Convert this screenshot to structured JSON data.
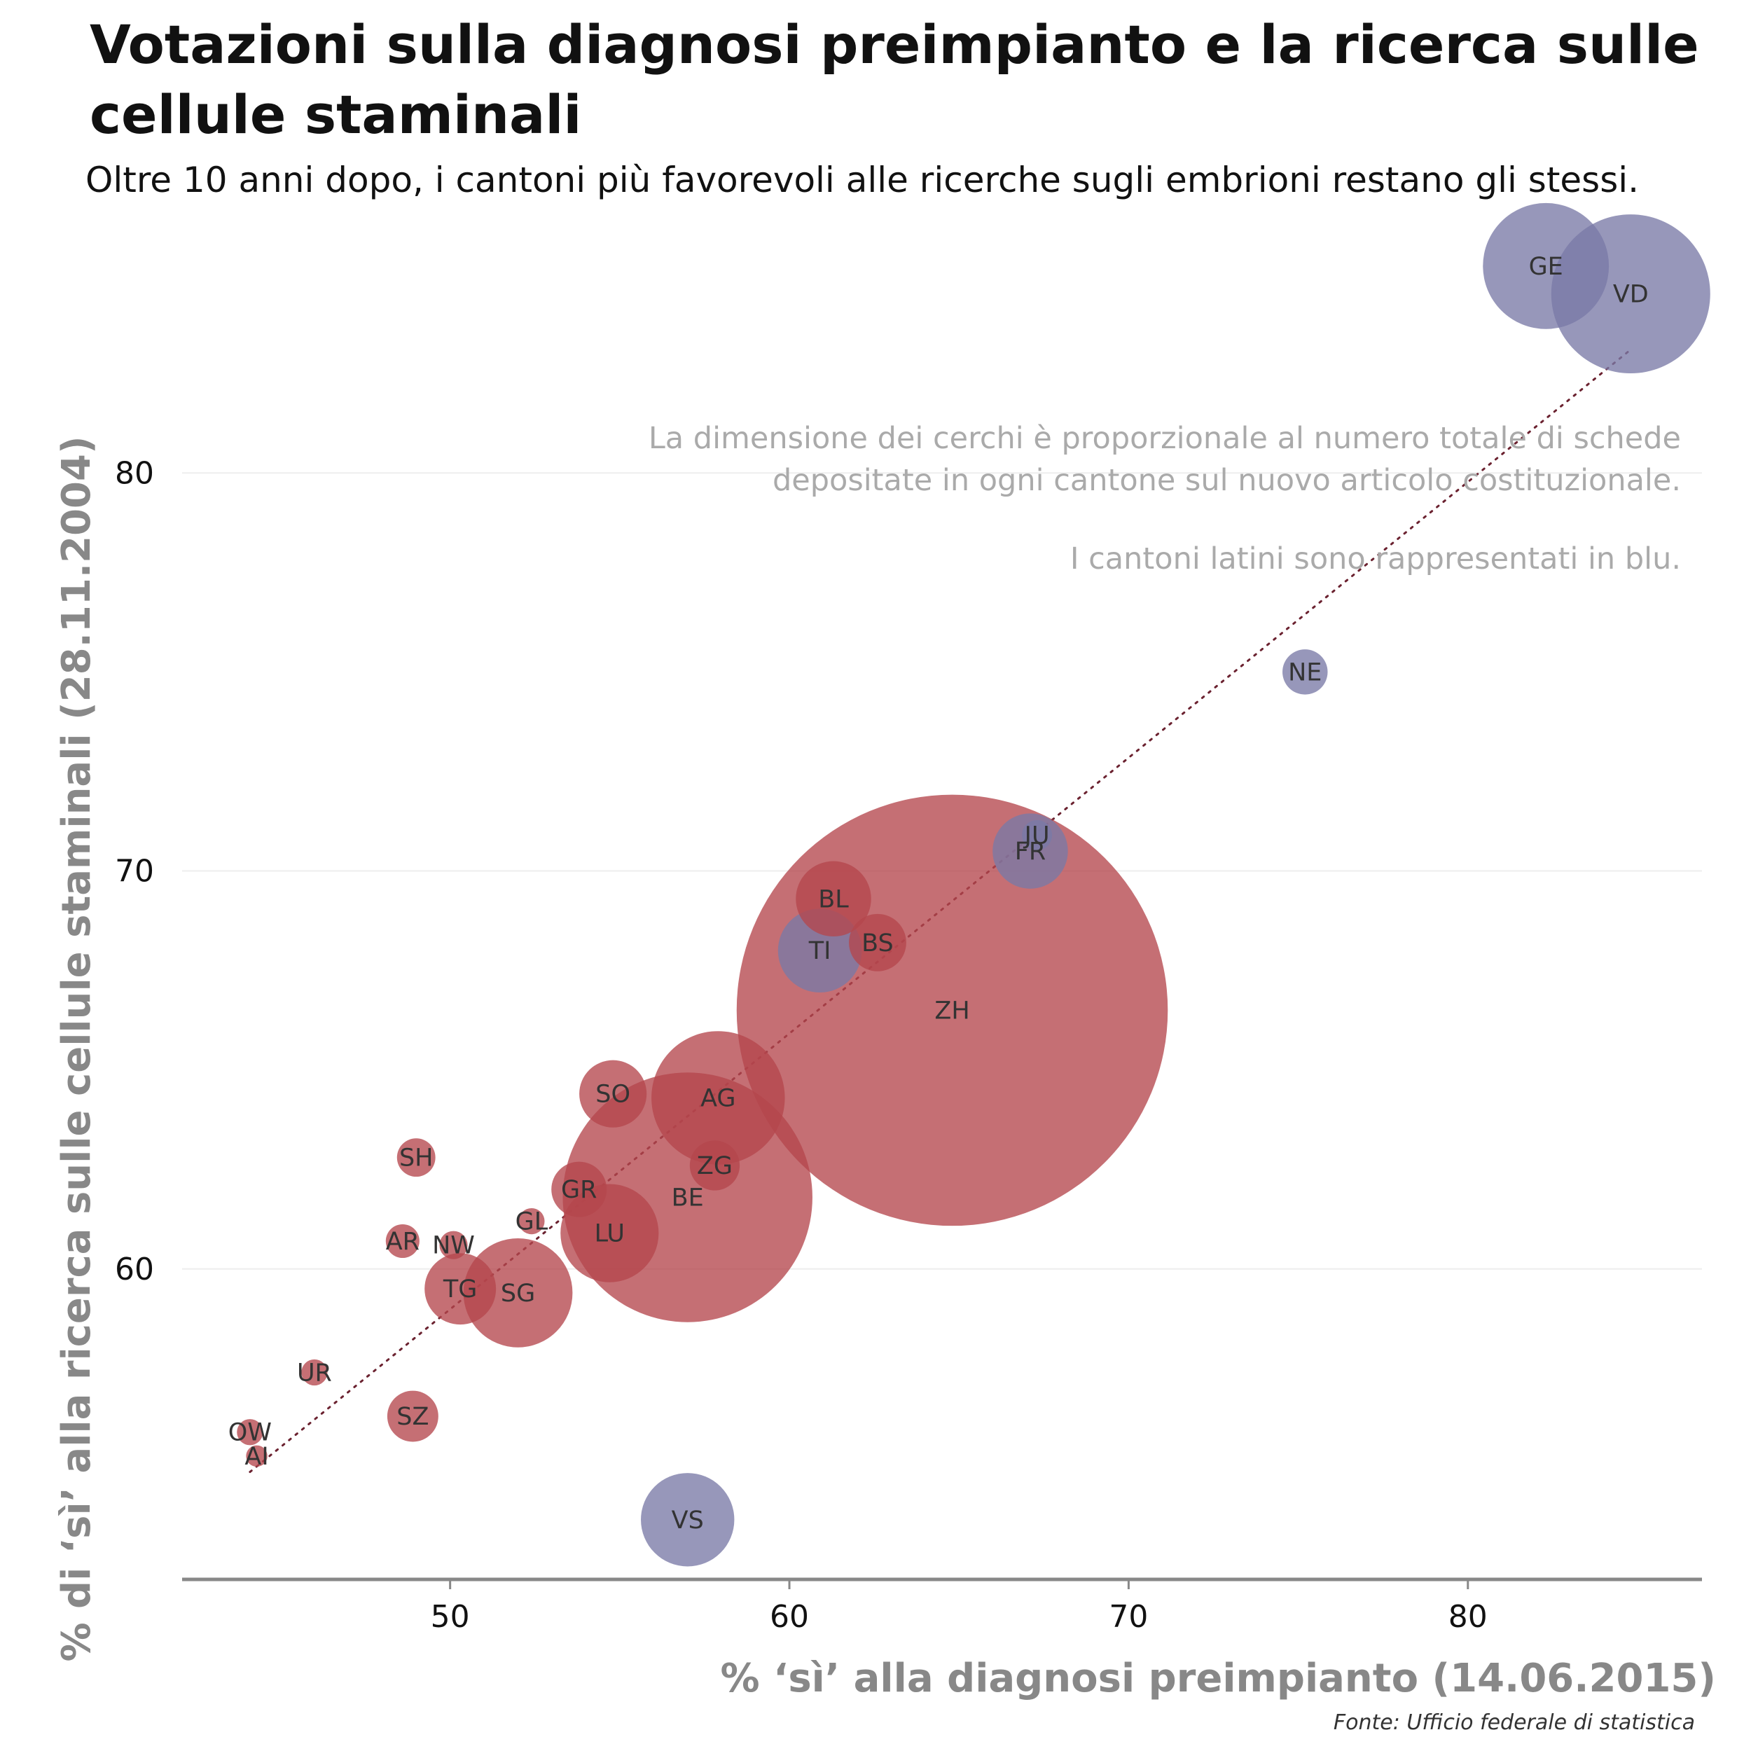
{
  "title": "Votazioni sulla diagnosi preimpianto e la ricerca sulle cellule staminali",
  "subtitle": "Oltre 10 anni dopo, i cantoni più favorevoli alle ricerche sugli embrioni restano gli stessi.",
  "source": "Fonte: Ufficio federale di statistica",
  "colors": {
    "latin": "#7a7aa6",
    "other": "#b5474d",
    "trend": "#6b2230",
    "axis": "#888888",
    "grid": "#eeeeee"
  },
  "notes": [
    "La dimensione dei cerchi è proporzionale al numero totale di schede",
    "depositate in ogni cantone sul nuovo articolo costituzionale.",
    "I cantoni latini sono rappresentati in blu."
  ],
  "chart_data": {
    "type": "scatter",
    "title": "Votazioni sulla diagnosi preimpianto e la ricerca sulle cellule staminali",
    "xlabel": "% ‘sì’ alla diagnosi preimpianto (14.06.2015)",
    "ylabel": "% di ‘sì’ alla ricerca sulle cellule staminali (28.11.2004)",
    "xlim": [
      42.1,
      86.9
    ],
    "ylim": [
      52.2,
      85.9
    ],
    "xticks": [
      50,
      60,
      70,
      80
    ],
    "yticks": [
      60,
      70,
      80
    ],
    "trendline": {
      "x1": 44.1,
      "y1": 54.9,
      "x2": 84.8,
      "y2": 83.1
    },
    "size_note": "bubble radius proportional to sqrt of total ballots (relative units)",
    "points": [
      {
        "label": "GE",
        "x": 82.3,
        "y": 85.2,
        "size": 140,
        "latin": true
      },
      {
        "label": "VD",
        "x": 84.8,
        "y": 84.5,
        "size": 223,
        "latin": true
      },
      {
        "label": "NE",
        "x": 75.2,
        "y": 75.0,
        "size": 18,
        "latin": true
      },
      {
        "label": "JU",
        "x": 67.3,
        "y": 70.9,
        "size": 8,
        "latin": true
      },
      {
        "label": "FR",
        "x": 67.1,
        "y": 70.5,
        "size": 50,
        "latin": true
      },
      {
        "label": "TI",
        "x": 60.9,
        "y": 68.0,
        "size": 62,
        "latin": true
      },
      {
        "label": "VS",
        "x": 57.0,
        "y": 53.7,
        "size": 77,
        "latin": true
      },
      {
        "label": "BL",
        "x": 61.3,
        "y": 69.3,
        "size": 50,
        "latin": false
      },
      {
        "label": "BS",
        "x": 62.6,
        "y": 68.2,
        "size": 29,
        "latin": false
      },
      {
        "label": "ZH",
        "x": 64.8,
        "y": 66.5,
        "size": 1640,
        "latin": false
      },
      {
        "label": "AG",
        "x": 57.9,
        "y": 64.3,
        "size": 157,
        "latin": false
      },
      {
        "label": "ZG",
        "x": 57.8,
        "y": 62.6,
        "size": 22,
        "latin": false
      },
      {
        "label": "BE",
        "x": 57.0,
        "y": 61.8,
        "size": 550,
        "latin": false
      },
      {
        "label": "SO",
        "x": 54.8,
        "y": 64.4,
        "size": 40,
        "latin": false
      },
      {
        "label": "LU",
        "x": 54.7,
        "y": 60.9,
        "size": 85,
        "latin": false
      },
      {
        "label": "GR",
        "x": 53.8,
        "y": 62.0,
        "size": 27,
        "latin": false
      },
      {
        "label": "GL",
        "x": 52.4,
        "y": 61.2,
        "size": 6,
        "latin": false
      },
      {
        "label": "SG",
        "x": 52.0,
        "y": 59.4,
        "size": 105,
        "latin": false
      },
      {
        "label": "TG",
        "x": 50.3,
        "y": 59.5,
        "size": 45,
        "latin": false
      },
      {
        "label": "NW",
        "x": 50.1,
        "y": 60.6,
        "size": 7,
        "latin": false
      },
      {
        "label": "AR",
        "x": 48.6,
        "y": 60.7,
        "size": 10,
        "latin": false
      },
      {
        "label": "SH",
        "x": 49.0,
        "y": 62.8,
        "size": 13,
        "latin": false
      },
      {
        "label": "UR",
        "x": 46.0,
        "y": 57.4,
        "size": 6,
        "latin": false
      },
      {
        "label": "SZ",
        "x": 48.9,
        "y": 56.3,
        "size": 23,
        "latin": false
      },
      {
        "label": "OW",
        "x": 44.1,
        "y": 55.9,
        "size": 6,
        "latin": false
      },
      {
        "label": "AI",
        "x": 44.3,
        "y": 55.3,
        "size": 4,
        "latin": false
      }
    ]
  }
}
